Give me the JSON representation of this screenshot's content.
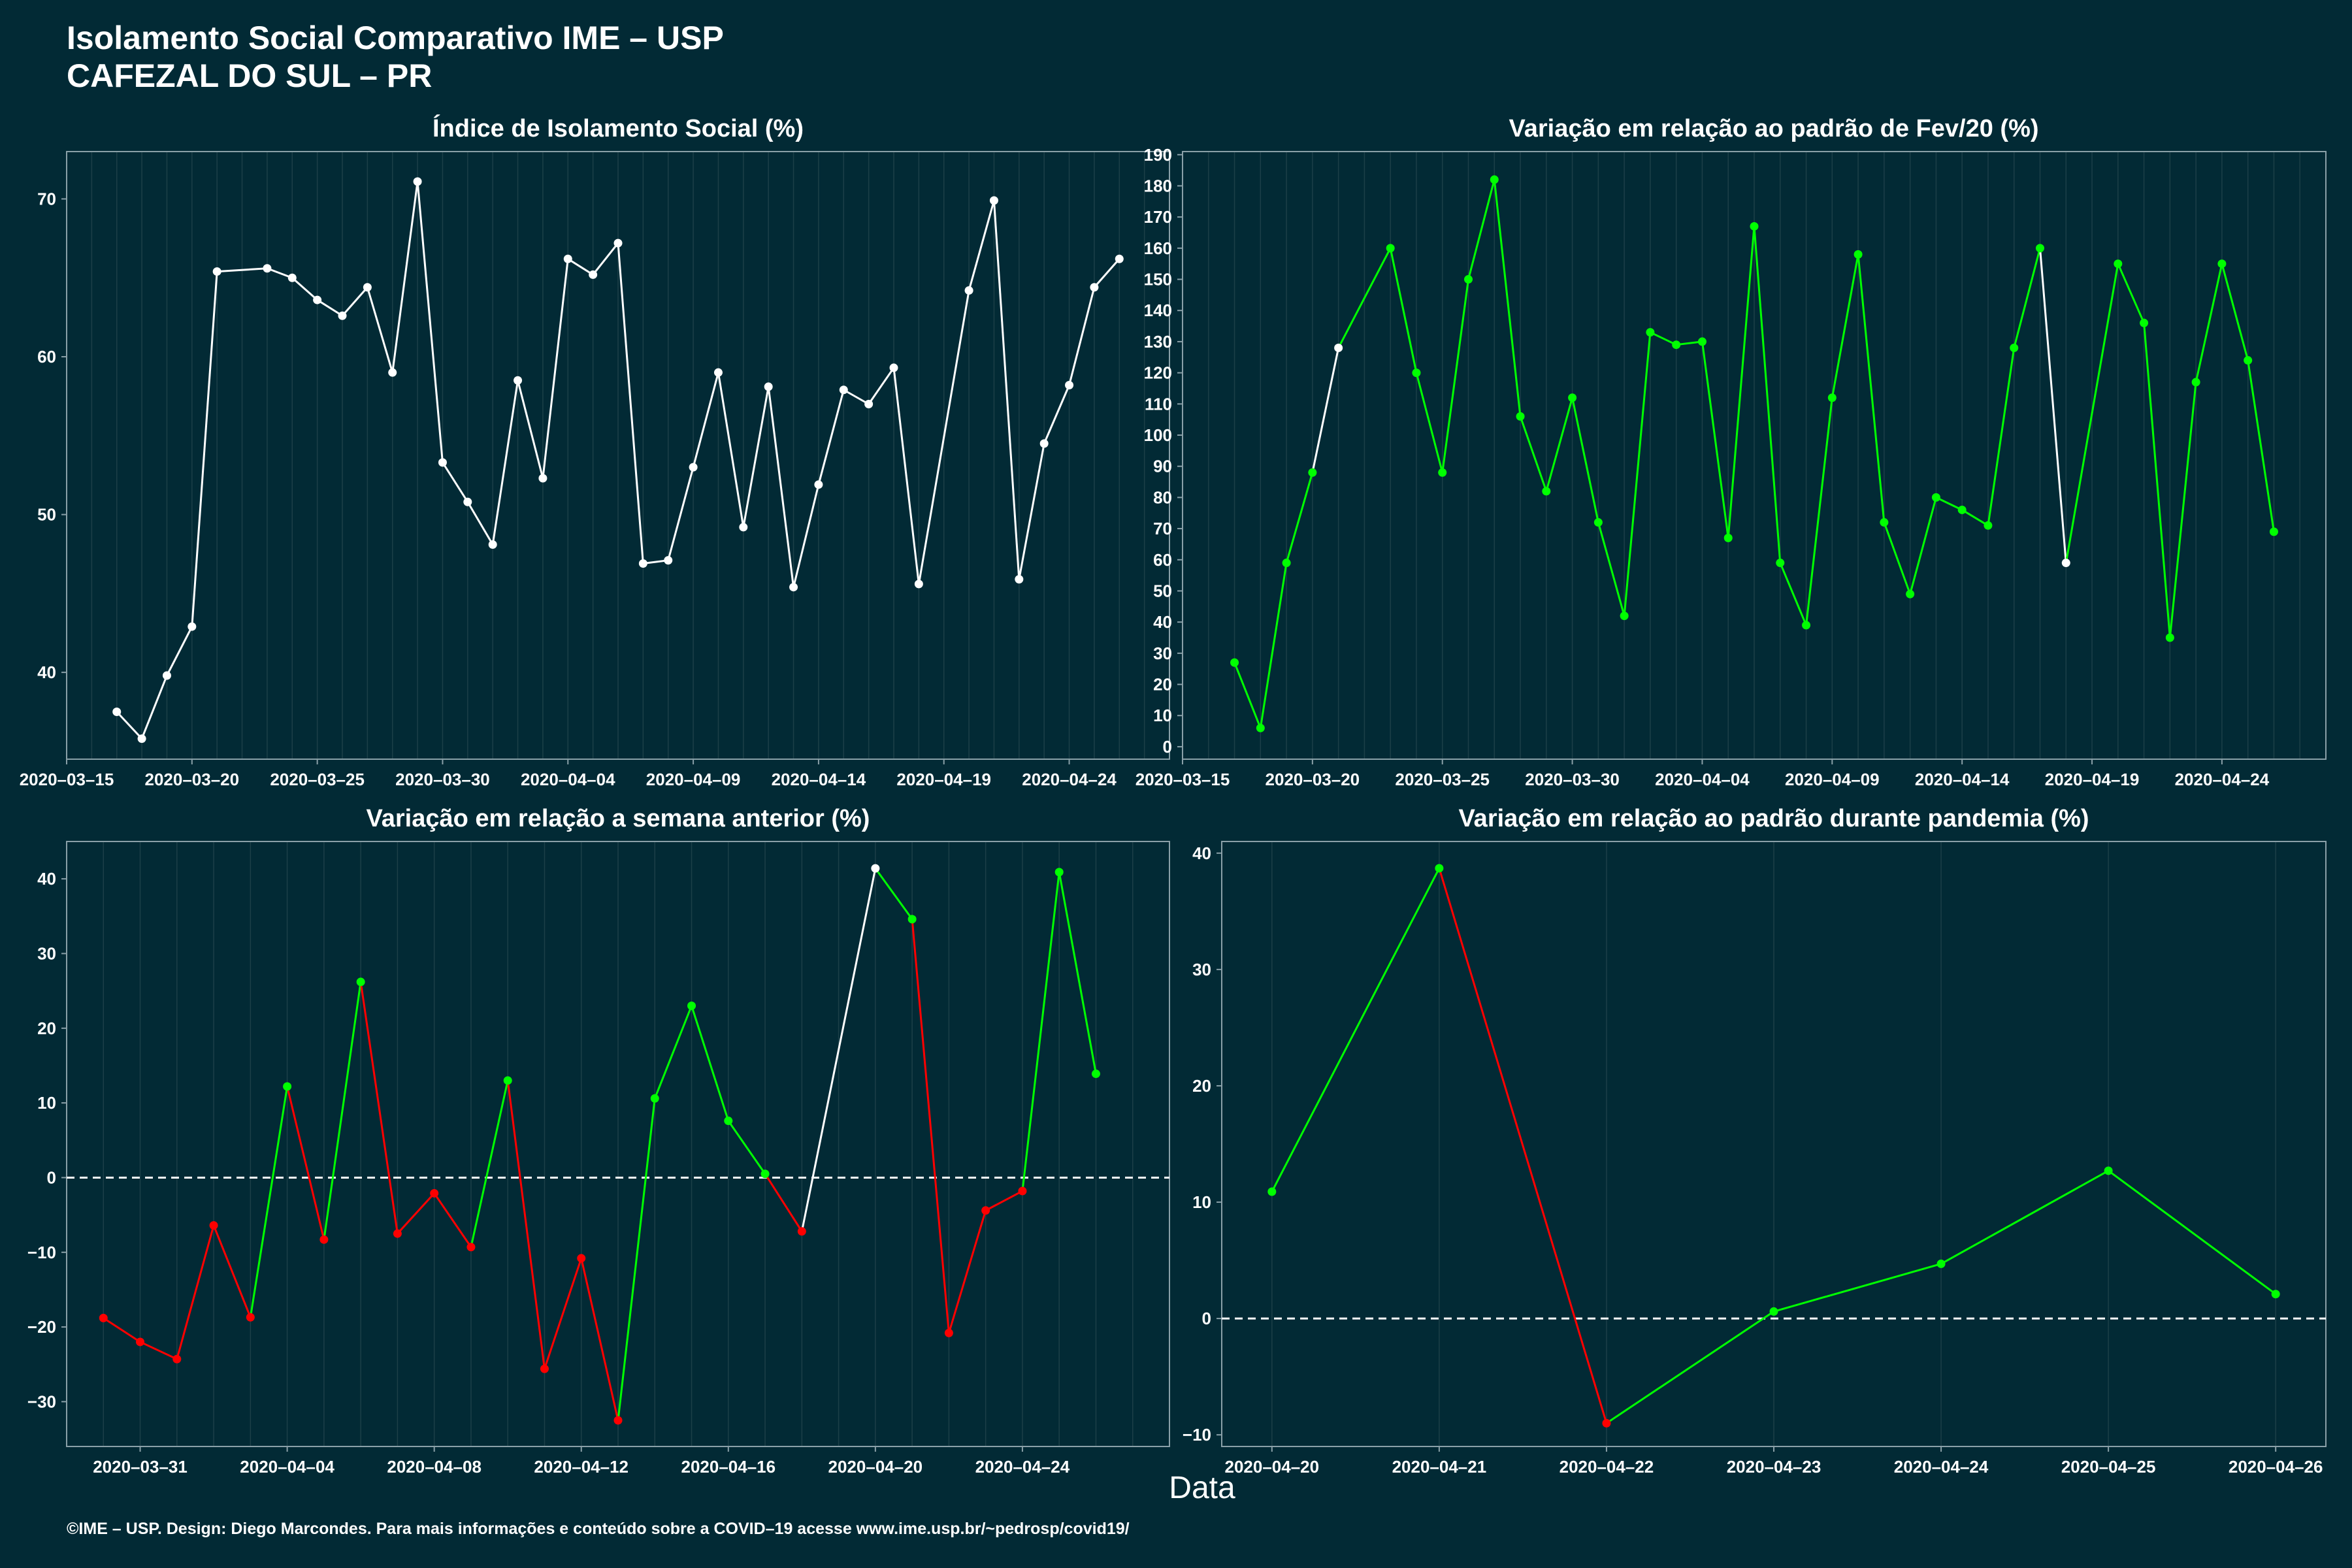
{
  "title_line1": "Isolamento Social Comparativo IME – USP",
  "title_line2": "CAFEZAL DO SUL – PR",
  "x_axis_label": "Data",
  "footer": "©IME – USP. Design: Diego Marcondes. Para mais informações e conteúdo sobre a COVID–19 acesse www.ime.usp.br/~pedrosp/covid19/",
  "colors": {
    "background": "#022a35",
    "white": "#ffffff",
    "green": "#00ff00",
    "red": "#ff0000",
    "grid": "#1c3f48",
    "axis": "#8aa0a8"
  },
  "chart_data": [
    {
      "type": "line",
      "title": "Índice de Isolamento Social (%)",
      "xlim": [
        "2020-03-15",
        "2020-04-28"
      ],
      "ylim": [
        34.5,
        73.0
      ],
      "yticks": [
        40,
        50,
        60,
        70
      ],
      "xticks": [
        "2020-03-15",
        "2020-03-20",
        "2020-03-25",
        "2020-03-30",
        "2020-04-04",
        "2020-04-09",
        "2020-04-14",
        "2020-04-19",
        "2020-04-24"
      ],
      "x": [
        "2020-03-17",
        "2020-03-18",
        "2020-03-19",
        "2020-03-20",
        "2020-03-21",
        "2020-03-23",
        "2020-03-24",
        "2020-03-25",
        "2020-03-26",
        "2020-03-27",
        "2020-03-28",
        "2020-03-29",
        "2020-03-30",
        "2020-03-31",
        "2020-04-01",
        "2020-04-02",
        "2020-04-03",
        "2020-04-04",
        "2020-04-05",
        "2020-04-06",
        "2020-04-07",
        "2020-04-08",
        "2020-04-09",
        "2020-04-10",
        "2020-04-11",
        "2020-04-12",
        "2020-04-13",
        "2020-04-14",
        "2020-04-15",
        "2020-04-16",
        "2020-04-17",
        "2020-04-18",
        "2020-04-20",
        "2020-04-21",
        "2020-04-22",
        "2020-04-23",
        "2020-04-24",
        "2020-04-25",
        "2020-04-26"
      ],
      "y": [
        37.5,
        35.8,
        39.8,
        42.9,
        65.4,
        65.6,
        65.0,
        63.6,
        62.6,
        64.4,
        59.0,
        71.1,
        53.3,
        50.8,
        48.1,
        58.5,
        52.3,
        66.2,
        65.2,
        67.2,
        46.9,
        47.1,
        53.0,
        59.0,
        49.2,
        58.1,
        45.4,
        51.9,
        57.9,
        57.0,
        59.3,
        45.6,
        64.2,
        69.9,
        45.9,
        54.5,
        58.2,
        64.4,
        66.2
      ],
      "colors": [
        "white",
        "white",
        "white",
        "white",
        "white",
        "white",
        "white",
        "white",
        "white",
        "white",
        "white",
        "white",
        "white",
        "white",
        "white",
        "white",
        "white",
        "white",
        "white",
        "white",
        "white",
        "white",
        "white",
        "white",
        "white",
        "white",
        "white",
        "white",
        "white",
        "white",
        "white",
        "white",
        "white",
        "white",
        "white",
        "white",
        "white",
        "white",
        "white"
      ],
      "zero_line": false
    },
    {
      "type": "line",
      "title": "Variação em relação ao padrão de Fev/20 (%)",
      "xlim": [
        "2020-03-15",
        "2020-04-28"
      ],
      "ylim": [
        -4,
        191
      ],
      "yticks": [
        0,
        10,
        20,
        30,
        40,
        50,
        60,
        70,
        80,
        90,
        100,
        110,
        120,
        130,
        140,
        150,
        160,
        170,
        180,
        190
      ],
      "xticks": [
        "2020-03-15",
        "2020-03-20",
        "2020-03-25",
        "2020-03-30",
        "2020-04-04",
        "2020-04-09",
        "2020-04-14",
        "2020-04-19",
        "2020-04-24"
      ],
      "x": [
        "2020-03-17",
        "2020-03-18",
        "2020-03-19",
        "2020-03-20",
        "2020-03-21",
        "2020-03-23",
        "2020-03-24",
        "2020-03-25",
        "2020-03-26",
        "2020-03-27",
        "2020-03-28",
        "2020-03-29",
        "2020-03-30",
        "2020-03-31",
        "2020-04-01",
        "2020-04-02",
        "2020-04-03",
        "2020-04-04",
        "2020-04-05",
        "2020-04-06",
        "2020-04-07",
        "2020-04-08",
        "2020-04-09",
        "2020-04-10",
        "2020-04-11",
        "2020-04-12",
        "2020-04-13",
        "2020-04-14",
        "2020-04-15",
        "2020-04-16",
        "2020-04-17",
        "2020-04-18",
        "2020-04-20",
        "2020-04-21",
        "2020-04-22",
        "2020-04-23",
        "2020-04-24",
        "2020-04-25",
        "2020-04-26"
      ],
      "y": [
        27,
        6,
        59,
        88,
        128,
        160,
        120,
        88,
        150,
        182,
        106,
        82,
        112,
        72,
        42,
        133,
        129,
        130,
        67,
        167,
        59,
        39,
        112,
        158,
        72,
        49,
        80,
        76,
        71,
        128,
        160,
        59,
        155,
        136,
        35,
        117,
        155,
        124,
        69
      ],
      "colors": [
        "green",
        "green",
        "green",
        "green",
        "white",
        "green",
        "green",
        "green",
        "green",
        "green",
        "green",
        "green",
        "green",
        "green",
        "green",
        "green",
        "green",
        "green",
        "green",
        "green",
        "green",
        "green",
        "green",
        "green",
        "green",
        "green",
        "green",
        "green",
        "green",
        "green",
        "green",
        "white",
        "green",
        "green",
        "green",
        "green",
        "green",
        "green",
        "green"
      ],
      "zero_line": false
    },
    {
      "type": "line",
      "title": "Variação em relação a semana anterior (%)",
      "xlim": [
        "2020-03-29",
        "2020-04-28"
      ],
      "ylim": [
        -36,
        45
      ],
      "yticks": [
        -30,
        -20,
        -10,
        0,
        10,
        20,
        30,
        40
      ],
      "xticks": [
        "2020-03-31",
        "2020-04-04",
        "2020-04-08",
        "2020-04-12",
        "2020-04-16",
        "2020-04-20",
        "2020-04-24"
      ],
      "x": [
        "2020-03-30",
        "2020-03-31",
        "2020-04-01",
        "2020-04-02",
        "2020-04-03",
        "2020-04-04",
        "2020-04-05",
        "2020-04-06",
        "2020-04-07",
        "2020-04-08",
        "2020-04-09",
        "2020-04-10",
        "2020-04-11",
        "2020-04-12",
        "2020-04-13",
        "2020-04-14",
        "2020-04-15",
        "2020-04-16",
        "2020-04-17",
        "2020-04-18",
        "2020-04-20",
        "2020-04-21",
        "2020-04-22",
        "2020-04-23",
        "2020-04-24",
        "2020-04-25",
        "2020-04-26"
      ],
      "y": [
        -18.8,
        -22.0,
        -24.3,
        -6.4,
        -18.7,
        12.2,
        -8.3,
        26.2,
        -7.5,
        -2.1,
        -9.3,
        13.0,
        -25.6,
        -10.8,
        -32.5,
        10.6,
        23.0,
        7.6,
        0.5,
        -7.2,
        41.4,
        34.6,
        -20.8,
        -4.4,
        -1.8,
        40.9,
        13.9
      ],
      "colors": [
        "red",
        "red",
        "red",
        "red",
        "red",
        "green",
        "red",
        "green",
        "red",
        "red",
        "red",
        "green",
        "red",
        "red",
        "red",
        "green",
        "green",
        "green",
        "green",
        "red",
        "white",
        "green",
        "red",
        "red",
        "red",
        "green",
        "green"
      ],
      "zero_line": true
    },
    {
      "type": "line",
      "title": "Variação em relação ao padrão durante pandemia (%)",
      "xlim": [
        "2020-04-19.7",
        "2020-04-26.3"
      ],
      "ylim": [
        -11,
        41
      ],
      "yticks": [
        -10,
        0,
        10,
        20,
        30,
        40
      ],
      "xticks": [
        "2020-04-20",
        "2020-04-21",
        "2020-04-22",
        "2020-04-23",
        "2020-04-24",
        "2020-04-25",
        "2020-04-26"
      ],
      "x": [
        "2020-04-20",
        "2020-04-21",
        "2020-04-22",
        "2020-04-23",
        "2020-04-24",
        "2020-04-25",
        "2020-04-26"
      ],
      "y": [
        10.9,
        38.7,
        -9.0,
        0.6,
        4.7,
        12.7,
        2.1
      ],
      "colors": [
        "green",
        "green",
        "red",
        "green",
        "green",
        "green",
        "green"
      ],
      "zero_line": true
    }
  ]
}
